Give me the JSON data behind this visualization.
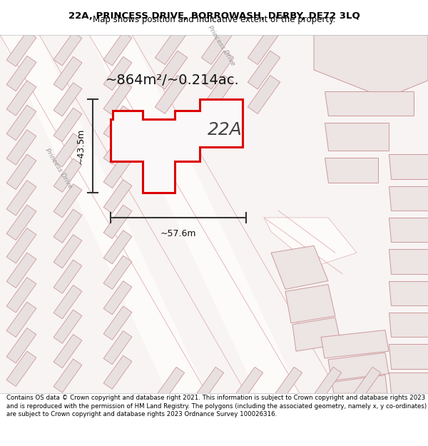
{
  "title_line1": "22A, PRINCESS DRIVE, BORROWASH, DERBY, DE72 3LQ",
  "title_line2": "Map shows position and indicative extent of the property.",
  "footer": "Contains OS data © Crown copyright and database right 2021. This information is subject to Crown copyright and database rights 2023 and is reproduced with the permission of HM Land Registry. The polygons (including the associated geometry, namely x, y co-ordinates) are subject to Crown copyright and database rights 2023 Ordnance Survey 100026316.",
  "area_label": "~864m²/~0.214ac.",
  "plot_label": "22A",
  "dim_width": "~57.6m",
  "dim_height": "~43.5m",
  "highlight_color": "#dd0000",
  "map_bg": "#f7f3f3",
  "building_fill": "#e8e0e0",
  "building_edge": "#cc9999",
  "road_fill": "#ffffff",
  "plot_fill": "#f5f0f0",
  "title_fontsize": 9.5,
  "subtitle_fontsize": 8.5,
  "footer_fontsize": 6.2,
  "area_fontsize": 14,
  "label_fontsize": 18,
  "dim_fontsize": 9
}
